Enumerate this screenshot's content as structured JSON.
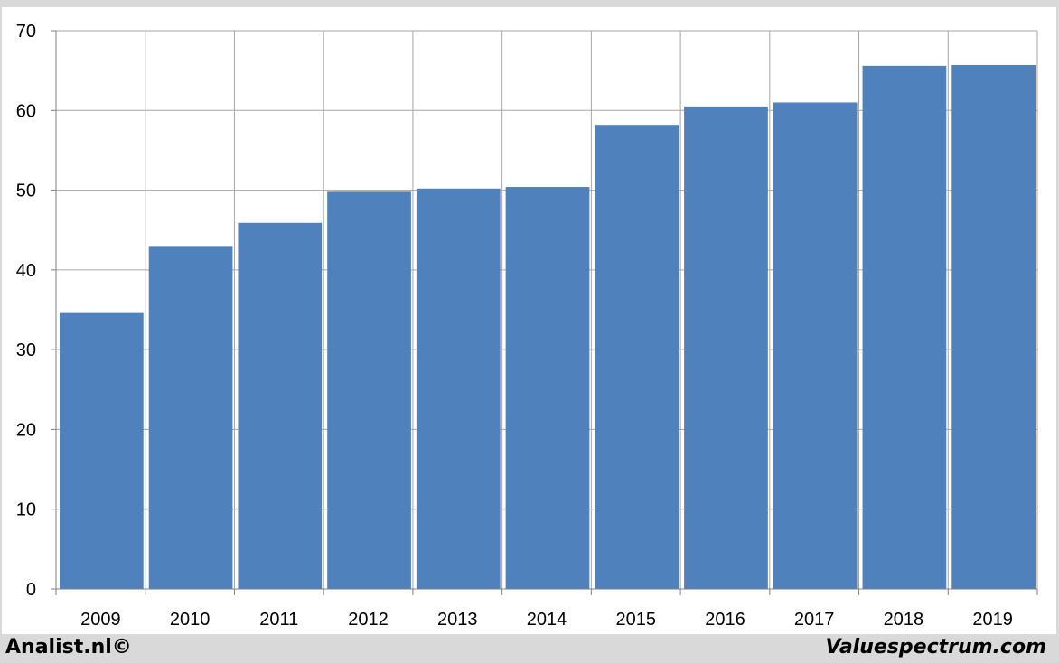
{
  "chart_data": {
    "type": "bar",
    "title": "",
    "xlabel": "",
    "ylabel": "",
    "categories": [
      "2009",
      "2010",
      "2011",
      "2012",
      "2013",
      "2014",
      "2015",
      "2016",
      "2017",
      "2018",
      "2019"
    ],
    "values": [
      34.7,
      43.0,
      45.9,
      49.8,
      50.2,
      50.4,
      58.2,
      60.5,
      61.0,
      65.6,
      65.7
    ],
    "ylim": [
      0,
      70
    ],
    "yticks": [
      "0",
      "10",
      "20",
      "30",
      "40",
      "50",
      "60",
      "70"
    ],
    "grid": true,
    "legend": "none",
    "bar_color": "#4f81bd",
    "grid_color": "#a6a6a6"
  },
  "footer": {
    "left": "Analist.nl©",
    "right": "Valuespectrum.com"
  }
}
